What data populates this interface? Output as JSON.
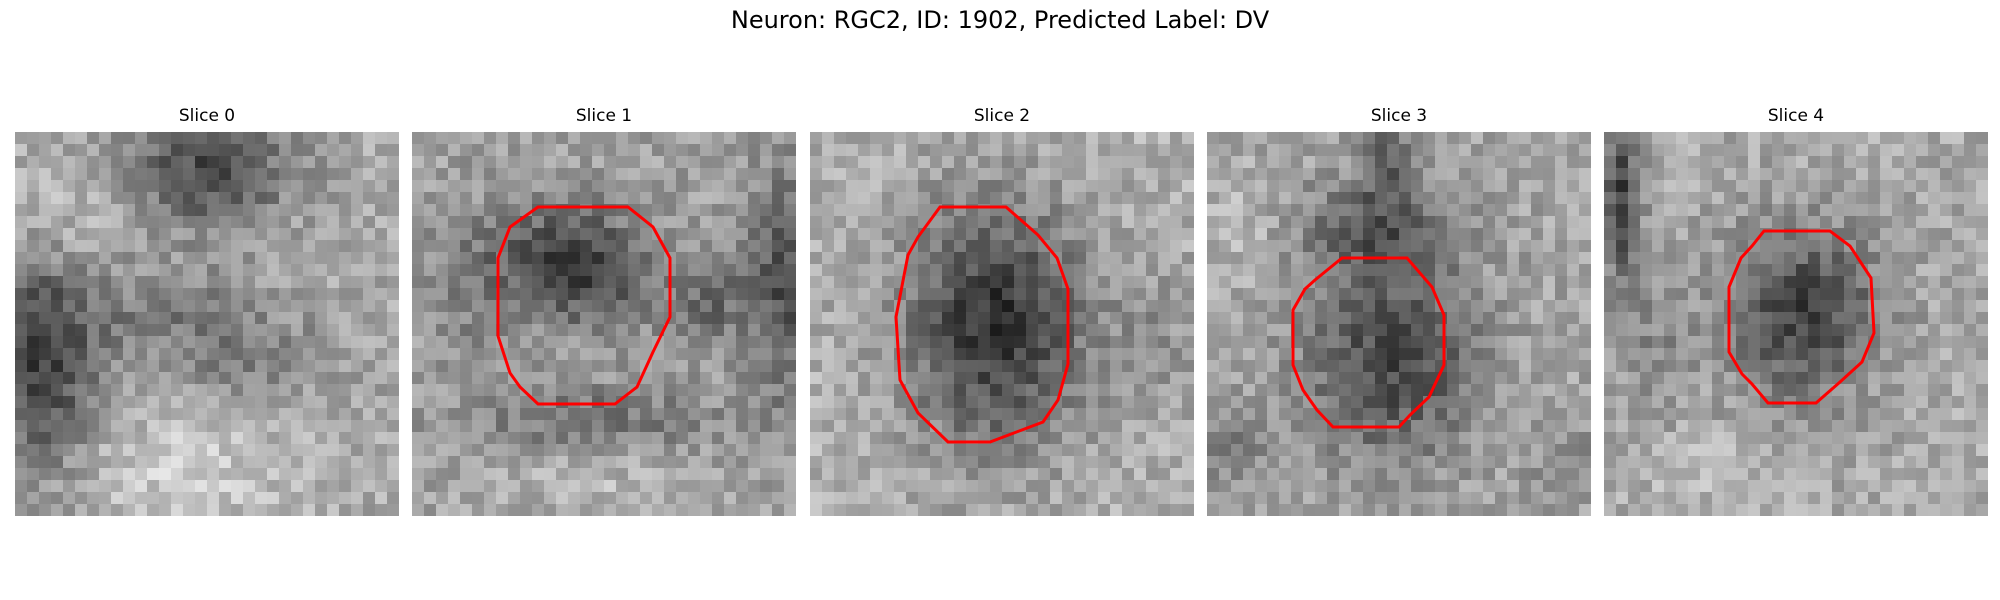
{
  "figure": {
    "title": "Neuron: RGC2, ID: 1902, Predicted Label: DV",
    "outline_color": "#ff0000"
  },
  "panels": [
    {
      "title": "Slice 0",
      "has_outline": false
    },
    {
      "title": "Slice 1",
      "has_outline": true
    },
    {
      "title": "Slice 2",
      "has_outline": true
    },
    {
      "title": "Slice 3",
      "has_outline": true
    },
    {
      "title": "Slice 4",
      "has_outline": true
    }
  ]
}
